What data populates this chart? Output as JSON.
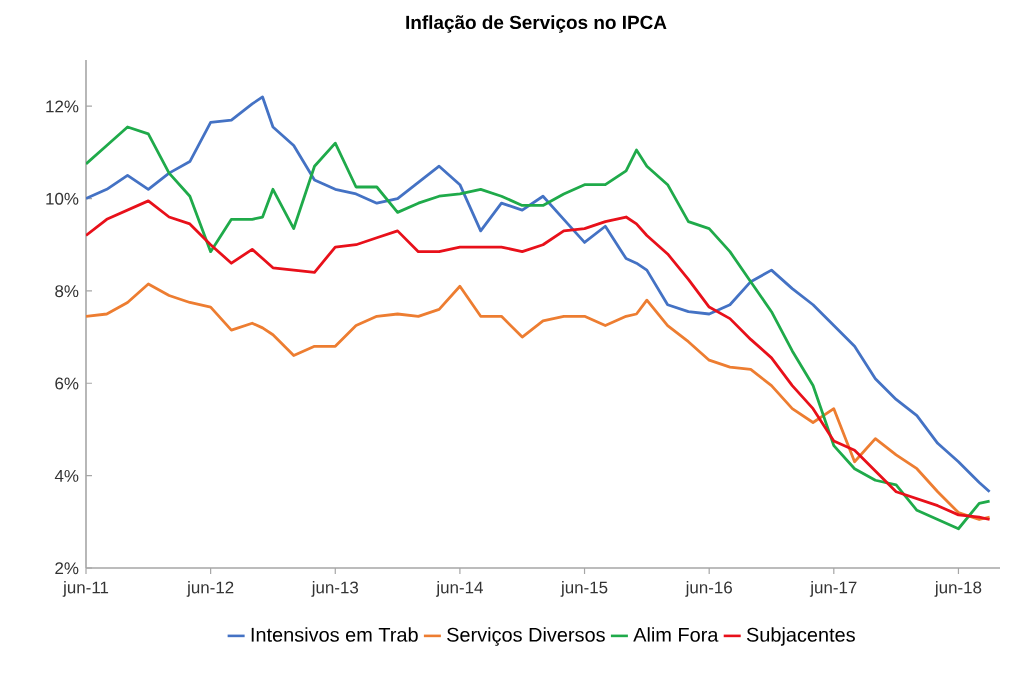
{
  "chart_data": {
    "type": "line",
    "title": "Inflação de Serviços no IPCA",
    "x": [
      "2011-06",
      "2011-08",
      "2011-10",
      "2011-12",
      "2012-02",
      "2012-04",
      "2012-06",
      "2012-08",
      "2012-10",
      "2012-11",
      "2012-12",
      "2013-02",
      "2013-04",
      "2013-06",
      "2013-08",
      "2013-10",
      "2013-12",
      "2014-02",
      "2014-04",
      "2014-06",
      "2014-08",
      "2014-10",
      "2014-12",
      "2015-02",
      "2015-04",
      "2015-06",
      "2015-08",
      "2015-10",
      "2015-11",
      "2015-12",
      "2016-02",
      "2016-04",
      "2016-06",
      "2016-08",
      "2016-10",
      "2016-12",
      "2017-02",
      "2017-04",
      "2017-06",
      "2017-08",
      "2017-10",
      "2017-12",
      "2018-02",
      "2018-04",
      "2018-06",
      "2018-08",
      "2018-09"
    ],
    "series": [
      {
        "name": "Intensivos em Trab",
        "color": "#4472c4",
        "values": [
          10.0,
          10.2,
          10.5,
          10.2,
          10.55,
          10.8,
          11.65,
          11.7,
          12.05,
          12.2,
          11.55,
          11.15,
          10.4,
          10.2,
          10.1,
          9.9,
          10.0,
          10.35,
          10.7,
          10.3,
          9.3,
          9.9,
          9.75,
          10.05,
          9.55,
          9.05,
          9.4,
          8.7,
          8.6,
          8.45,
          7.7,
          7.55,
          7.5,
          7.7,
          8.2,
          8.45,
          8.05,
          7.7,
          7.25,
          6.8,
          6.1,
          5.65,
          5.3,
          4.7,
          4.3,
          3.85,
          3.65
        ]
      },
      {
        "name": "Serviços Diversos",
        "color": "#ed7d31",
        "values": [
          7.45,
          7.5,
          7.75,
          8.15,
          7.9,
          7.75,
          7.65,
          7.15,
          7.3,
          7.2,
          7.05,
          6.6,
          6.8,
          6.8,
          7.25,
          7.45,
          7.5,
          7.45,
          7.6,
          8.1,
          7.45,
          7.45,
          7.0,
          7.35,
          7.45,
          7.45,
          7.25,
          7.45,
          7.5,
          7.8,
          7.25,
          6.9,
          6.5,
          6.35,
          6.3,
          5.95,
          5.45,
          5.15,
          5.45,
          4.3,
          4.8,
          4.45,
          4.15,
          3.65,
          3.2,
          3.05,
          3.1
        ]
      },
      {
        "name": "Alim Fora",
        "color": "#1faa4a",
        "values": [
          10.75,
          11.15,
          11.55,
          11.4,
          10.55,
          10.05,
          8.85,
          9.55,
          9.55,
          9.6,
          10.2,
          9.35,
          10.7,
          11.2,
          10.25,
          10.25,
          9.7,
          9.9,
          10.05,
          10.1,
          10.2,
          10.05,
          9.85,
          9.85,
          10.1,
          10.3,
          10.3,
          10.6,
          11.05,
          10.7,
          10.3,
          9.5,
          9.35,
          8.85,
          8.2,
          7.55,
          6.7,
          5.95,
          4.65,
          4.15,
          3.9,
          3.8,
          3.25,
          3.05,
          2.85,
          3.4,
          3.45
        ]
      },
      {
        "name": "Subjacentes",
        "color": "#e8101a",
        "values": [
          9.2,
          9.55,
          9.75,
          9.95,
          9.6,
          9.45,
          9.0,
          8.6,
          8.9,
          8.7,
          8.5,
          8.45,
          8.4,
          8.95,
          9.0,
          9.15,
          9.3,
          8.85,
          8.85,
          8.95,
          8.95,
          8.95,
          8.85,
          9.0,
          9.3,
          9.35,
          9.5,
          9.6,
          9.45,
          9.2,
          8.8,
          8.25,
          7.65,
          7.4,
          6.95,
          6.55,
          5.95,
          5.45,
          4.75,
          4.55,
          4.1,
          3.65,
          3.5,
          3.35,
          3.15,
          3.1,
          3.05
        ]
      }
    ],
    "xlim": [
      "2011-06",
      "2018-10"
    ],
    "xticks": [
      {
        "value": "2011-06",
        "label": "jun-11"
      },
      {
        "value": "2012-06",
        "label": "jun-12"
      },
      {
        "value": "2013-06",
        "label": "jun-13"
      },
      {
        "value": "2014-06",
        "label": "jun-14"
      },
      {
        "value": "2015-06",
        "label": "jun-15"
      },
      {
        "value": "2016-06",
        "label": "jun-16"
      },
      {
        "value": "2017-06",
        "label": "jun-17"
      },
      {
        "value": "2018-06",
        "label": "jun-18"
      }
    ],
    "ylim": [
      2,
      13
    ],
    "yticks": [
      {
        "value": 2,
        "label": "2%"
      },
      {
        "value": 4,
        "label": "4%"
      },
      {
        "value": 6,
        "label": "6%"
      },
      {
        "value": 8,
        "label": "8%"
      },
      {
        "value": 10,
        "label": "10%"
      },
      {
        "value": 12,
        "label": "12%"
      }
    ],
    "grid": false,
    "legend": "bottom",
    "marker": "none",
    "line_style": "solid"
  }
}
